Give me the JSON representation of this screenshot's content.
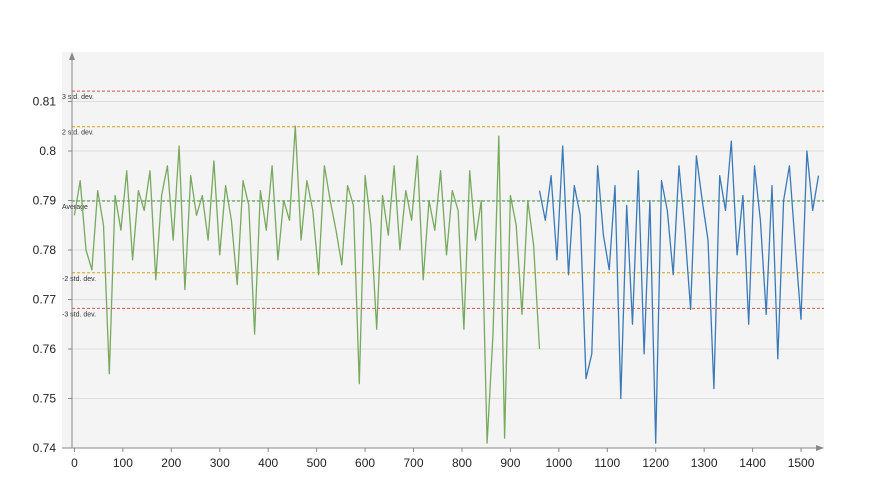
{
  "chart_data": {
    "type": "line",
    "title": "",
    "xlabel": "",
    "ylabel": "",
    "xlim": [
      -5,
      1535
    ],
    "ylim": [
      0.74,
      0.82
    ],
    "x_ticks": [
      0,
      100,
      200,
      300,
      400,
      500,
      600,
      700,
      800,
      900,
      1000,
      1100,
      1200,
      1300,
      1400,
      1500
    ],
    "y_ticks": [
      0.74,
      0.75,
      0.76,
      0.77,
      0.78,
      0.79,
      0.8,
      0.81
    ],
    "y_tick_labels": [
      "0.74",
      "0.75",
      "0.76",
      "0.77",
      "0.78",
      "0.79",
      "0.8",
      "0.81"
    ],
    "grid": true,
    "legend": "none",
    "reference_lines": [
      {
        "label": "3 std. dev.",
        "value": 0.8121,
        "color": "#d9534f"
      },
      {
        "label": "2 std. dev.",
        "value": 0.8049,
        "color": "#d4a017"
      },
      {
        "label": "Average",
        "value": 0.7899,
        "color": "#3a9a3a"
      },
      {
        "label": "-2 std. dev.",
        "value": 0.7754,
        "color": "#d4a017"
      },
      {
        "label": "-3 std. dev.",
        "value": 0.7682,
        "color": "#d9534f"
      }
    ],
    "series": [
      {
        "color": "#77a95f",
        "x": [
          0,
          12,
          24,
          36,
          48,
          60,
          72,
          84,
          96,
          108,
          120,
          132,
          144,
          156,
          168,
          180,
          192,
          204,
          216,
          228,
          240,
          252,
          264,
          276,
          288,
          300,
          312,
          324,
          336,
          348,
          360,
          372,
          384,
          396,
          408,
          420,
          432,
          444,
          456,
          468,
          480,
          492,
          504,
          516,
          528,
          540,
          552,
          564,
          576,
          588,
          600,
          612,
          624,
          636,
          648,
          660,
          672,
          684,
          696,
          708,
          720,
          732,
          744,
          756,
          768,
          780,
          792,
          804,
          816,
          828,
          840,
          852,
          864,
          876,
          888,
          900,
          912,
          924,
          936,
          948,
          960
        ],
        "y": [
          0.787,
          0.794,
          0.78,
          0.776,
          0.792,
          0.785,
          0.755,
          0.791,
          0.784,
          0.796,
          0.778,
          0.792,
          0.788,
          0.796,
          0.774,
          0.791,
          0.797,
          0.782,
          0.801,
          0.772,
          0.795,
          0.787,
          0.791,
          0.782,
          0.798,
          0.779,
          0.793,
          0.786,
          0.773,
          0.794,
          0.789,
          0.763,
          0.792,
          0.784,
          0.797,
          0.778,
          0.79,
          0.786,
          0.805,
          0.782,
          0.794,
          0.788,
          0.775,
          0.797,
          0.79,
          0.784,
          0.777,
          0.793,
          0.789,
          0.753,
          0.795,
          0.785,
          0.764,
          0.791,
          0.783,
          0.797,
          0.78,
          0.792,
          0.786,
          0.799,
          0.774,
          0.79,
          0.784,
          0.796,
          0.779,
          0.792,
          0.788,
          0.764,
          0.796,
          0.782,
          0.79,
          0.741,
          0.763,
          0.803,
          0.742,
          0.791,
          0.785,
          0.767,
          0.79,
          0.781,
          0.76
        ]
      },
      {
        "color": "#3a7ab8",
        "x": [
          960,
          972,
          984,
          996,
          1008,
          1020,
          1032,
          1044,
          1056,
          1068,
          1080,
          1092,
          1104,
          1116,
          1128,
          1140,
          1152,
          1164,
          1176,
          1188,
          1200,
          1212,
          1224,
          1236,
          1248,
          1260,
          1272,
          1284,
          1296,
          1308,
          1320,
          1332,
          1344,
          1356,
          1368,
          1380,
          1392,
          1404,
          1416,
          1428,
          1440,
          1452,
          1464,
          1476,
          1488,
          1500,
          1512,
          1524,
          1536
        ],
        "y": [
          0.792,
          0.786,
          0.795,
          0.778,
          0.801,
          0.775,
          0.793,
          0.787,
          0.754,
          0.759,
          0.797,
          0.783,
          0.776,
          0.793,
          0.75,
          0.789,
          0.765,
          0.796,
          0.759,
          0.79,
          0.741,
          0.794,
          0.788,
          0.775,
          0.797,
          0.784,
          0.768,
          0.799,
          0.79,
          0.782,
          0.752,
          0.795,
          0.788,
          0.802,
          0.779,
          0.791,
          0.765,
          0.797,
          0.786,
          0.767,
          0.793,
          0.758,
          0.79,
          0.797,
          0.781,
          0.766,
          0.8,
          0.788,
          0.795
        ]
      }
    ]
  }
}
